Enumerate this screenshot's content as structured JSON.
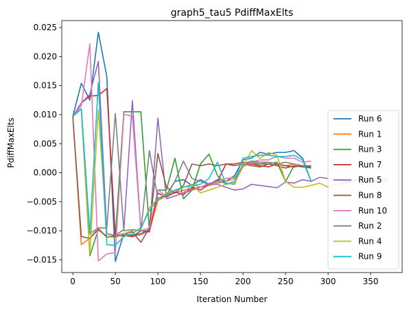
{
  "chart_data": {
    "type": "line",
    "title": "graph5_tau5 PdiffMaxElts",
    "xlabel": "Iteration Number",
    "ylabel": "PdiffMaxElts",
    "xlim": [
      -13,
      387
    ],
    "ylim": [
      -0.0172,
      0.0262
    ],
    "xticks": [
      0,
      50,
      100,
      150,
      200,
      250,
      300,
      350
    ],
    "xtick_labels": [
      "0",
      "50",
      "100",
      "150",
      "200",
      "250",
      "300",
      "350"
    ],
    "yticks": [
      -0.015,
      -0.01,
      -0.005,
      0.0,
      0.005,
      0.01,
      0.015,
      0.02,
      0.025
    ],
    "ytick_labels": [
      "−0.015",
      "−0.010",
      "−0.005",
      "0.000",
      "0.005",
      "0.010",
      "0.015",
      "0.020",
      "0.025"
    ],
    "grid": false,
    "legend_position": "lower-right",
    "series": [
      {
        "name": "Run 6",
        "color": "#1f77b4",
        "x": [
          0,
          10,
          20,
          30,
          40,
          50,
          60,
          70,
          80,
          90,
          100,
          110,
          120,
          130,
          140,
          150,
          160,
          170,
          180,
          190,
          200,
          210,
          220,
          230,
          240,
          250,
          260,
          270,
          280
        ],
        "y": [
          0.0097,
          0.0154,
          0.0125,
          0.0242,
          0.0165,
          -0.0153,
          -0.0105,
          -0.0108,
          -0.0105,
          -0.0098,
          -0.0045,
          -0.0038,
          -0.0015,
          -0.0012,
          -0.0022,
          -0.0012,
          -0.002,
          -0.0012,
          -0.0015,
          -0.0005,
          0.0022,
          0.0025,
          0.0035,
          0.0032,
          0.0035,
          0.0035,
          0.0038,
          0.0025,
          -0.0015
        ]
      },
      {
        "name": "Run 1",
        "color": "#ff7f0e",
        "x": [
          0,
          10,
          20,
          30,
          40,
          50,
          60,
          70,
          80,
          90,
          100,
          110,
          120,
          130,
          140,
          150,
          160,
          170,
          180,
          190,
          200,
          210,
          220,
          230,
          240,
          250,
          260,
          270,
          280
        ],
        "y": [
          0.0097,
          -0.0124,
          -0.0113,
          -0.0095,
          -0.0112,
          -0.0109,
          -0.0108,
          -0.011,
          -0.0107,
          -0.01,
          -0.0048,
          -0.004,
          -0.0035,
          -0.003,
          -0.0028,
          -0.0025,
          -0.0022,
          -0.0018,
          -0.0015,
          -0.001,
          0.0012,
          0.0015,
          0.0015,
          0.0018,
          0.0015,
          0.0012,
          0.0015,
          0.0012,
          0.001
        ]
      },
      {
        "name": "Run 3",
        "color": "#2ca02c",
        "x": [
          0,
          10,
          20,
          30,
          40,
          50,
          60,
          70,
          80,
          90,
          100,
          110,
          120,
          130,
          140,
          150,
          160,
          170,
          180,
          190,
          200,
          210,
          220,
          230,
          240,
          250,
          260,
          270,
          280
        ],
        "y": [
          0.0097,
          0.011,
          -0.0143,
          -0.0098,
          -0.011,
          -0.011,
          0.0105,
          0.0105,
          0.0105,
          -0.01,
          -0.003,
          -0.003,
          0.0025,
          -0.0045,
          -0.003,
          0.0015,
          0.0032,
          -0.0005,
          -0.002,
          -0.0015,
          0.0012,
          0.0018,
          0.0015,
          0.0015,
          0.0018,
          -0.0015,
          0.0012,
          0.001,
          0.001
        ]
      },
      {
        "name": "Run 7",
        "color": "#d62728",
        "x": [
          0,
          10,
          20,
          30,
          40,
          50,
          60,
          70,
          80,
          90,
          100,
          110,
          120,
          130,
          140,
          150,
          160,
          170,
          180,
          190,
          200,
          210,
          220,
          230,
          240,
          250,
          260,
          270,
          280
        ],
        "y": [
          0.0097,
          0.012,
          0.0132,
          0.0133,
          0.0145,
          -0.011,
          -0.0108,
          -0.011,
          -0.01,
          -0.0102,
          -0.0035,
          -0.0042,
          -0.0033,
          -0.0038,
          -0.0025,
          -0.003,
          -0.002,
          -0.0015,
          0.0015,
          0.0015,
          0.0018,
          0.0015,
          0.0012,
          0.001,
          0.0015,
          0.0012,
          0.001,
          0.0012,
          0.0012
        ]
      },
      {
        "name": "Run 5",
        "color": "#9467bd",
        "x": [
          0,
          10,
          20,
          30,
          40,
          50,
          60,
          70,
          80,
          90,
          100,
          110,
          120,
          130,
          140,
          150,
          160,
          170,
          180,
          190,
          200,
          210,
          220,
          230,
          240,
          250,
          260,
          270,
          280,
          290,
          300,
          310,
          320,
          330,
          340,
          350,
          360,
          370
        ],
        "y": [
          0.0097,
          0.012,
          0.0135,
          0.0192,
          -0.0105,
          -0.0108,
          -0.0098,
          0.0124,
          -0.01,
          -0.01,
          0.0094,
          -0.0045,
          -0.004,
          -0.0035,
          -0.003,
          -0.0025,
          -0.002,
          -0.002,
          -0.0025,
          -0.003,
          -0.0028,
          -0.002,
          -0.0022,
          -0.0024,
          -0.0026,
          -0.0016,
          -0.0018,
          -0.0012,
          -0.0015,
          -0.0008,
          -0.001,
          -0.0012,
          -0.0015,
          -0.0013,
          -0.0012,
          -0.0014,
          -0.0016,
          -0.0014
        ]
      },
      {
        "name": "Run 8",
        "color": "#8c564b",
        "x": [
          0,
          10,
          20,
          30,
          40,
          50,
          60,
          70,
          80,
          90,
          100,
          110,
          120,
          130,
          140,
          150,
          160,
          170,
          180,
          190,
          200,
          210,
          220,
          230,
          240,
          250,
          260,
          270,
          280
        ],
        "y": [
          0.0097,
          -0.011,
          -0.0113,
          -0.0098,
          -0.011,
          -0.0109,
          -0.0105,
          -0.0102,
          -0.012,
          -0.0095,
          0.0033,
          -0.0025,
          -0.0035,
          -0.0022,
          0.0015,
          0.0012,
          0.0015,
          0.0012,
          0.0015,
          0.0012,
          0.0015,
          0.0012,
          0.001,
          0.0015,
          0.0012,
          0.0008,
          0.0012,
          0.001,
          0.0008
        ]
      },
      {
        "name": "Run 10",
        "color": "#e377c2",
        "x": [
          0,
          10,
          20,
          30,
          40,
          50,
          60,
          70,
          80,
          90,
          100,
          110,
          120,
          130,
          140,
          150,
          160,
          170,
          180,
          190,
          200,
          210,
          220,
          230,
          240,
          250,
          260,
          270,
          280
        ],
        "y": [
          0.0097,
          0.0115,
          0.0222,
          -0.0152,
          -0.014,
          -0.0138,
          0.01,
          0.0098,
          -0.01,
          -0.0095,
          -0.003,
          -0.004,
          -0.003,
          -0.0035,
          -0.002,
          -0.0025,
          -0.0018,
          -0.0015,
          -0.001,
          -0.0008,
          0.001,
          0.0018,
          0.0022,
          0.0022,
          0.0028,
          0.0025,
          0.0025,
          0.0018,
          0.002
        ]
      },
      {
        "name": "Run 2",
        "color": "#7f7f7f",
        "x": [
          0,
          10,
          20,
          30,
          40,
          50,
          60,
          70,
          80,
          90,
          100,
          110,
          120,
          130,
          140,
          150,
          160,
          170,
          180,
          190,
          200,
          210,
          220,
          230,
          240,
          250,
          260,
          270,
          280
        ],
        "y": [
          0.0097,
          0.011,
          -0.0105,
          -0.0095,
          -0.0095,
          0.0102,
          -0.01,
          -0.0098,
          -0.01,
          0.0038,
          -0.0045,
          -0.004,
          -0.0015,
          0.002,
          -0.001,
          -0.0015,
          -0.002,
          -0.0015,
          -0.0018,
          -0.002,
          0.0015,
          0.002,
          0.0018,
          0.0018,
          0.0015,
          0.0018,
          0.0015,
          0.0012,
          0.0012
        ]
      },
      {
        "name": "Run 4",
        "color": "#bcbd22",
        "x": [
          0,
          10,
          20,
          30,
          40,
          50,
          60,
          70,
          80,
          90,
          100,
          110,
          120,
          130,
          140,
          150,
          160,
          170,
          180,
          190,
          200,
          210,
          220,
          230,
          240,
          250,
          260,
          270,
          280,
          290,
          300,
          310,
          320,
          330,
          340,
          350,
          360,
          370
        ],
        "y": [
          0.0097,
          0.011,
          -0.014,
          0.0108,
          -0.011,
          -0.0112,
          -0.0105,
          -0.01,
          -0.0098,
          -0.006,
          -0.0045,
          -0.0035,
          -0.003,
          -0.0025,
          -0.002,
          -0.0035,
          -0.003,
          -0.0025,
          -0.002,
          -0.0018,
          0.001,
          0.0038,
          0.0025,
          0.0035,
          0.003,
          -0.0015,
          -0.0025,
          -0.0025,
          -0.0022,
          -0.0018,
          -0.0025,
          -0.002,
          -0.0018,
          -0.0015,
          -0.0012,
          -0.001,
          -0.0014,
          -0.001
        ]
      },
      {
        "name": "Run 9",
        "color": "#17becf",
        "x": [
          0,
          10,
          20,
          30,
          40,
          50,
          60,
          70,
          80,
          90,
          100,
          110,
          120,
          130,
          140,
          150,
          160,
          170,
          180,
          190,
          200,
          210,
          220,
          230,
          240,
          250,
          260,
          270,
          280
        ],
        "y": [
          0.0097,
          0.011,
          -0.0105,
          0.0155,
          -0.0124,
          -0.0125,
          -0.011,
          -0.0105,
          -0.0095,
          -0.0065,
          -0.0045,
          -0.0038,
          -0.003,
          -0.0025,
          -0.0022,
          -0.002,
          -0.001,
          0.0018,
          -0.002,
          -0.0015,
          0.0025,
          0.0028,
          0.003,
          0.003,
          0.0028,
          0.0028,
          0.003,
          0.0022,
          -0.0015
        ]
      }
    ]
  }
}
